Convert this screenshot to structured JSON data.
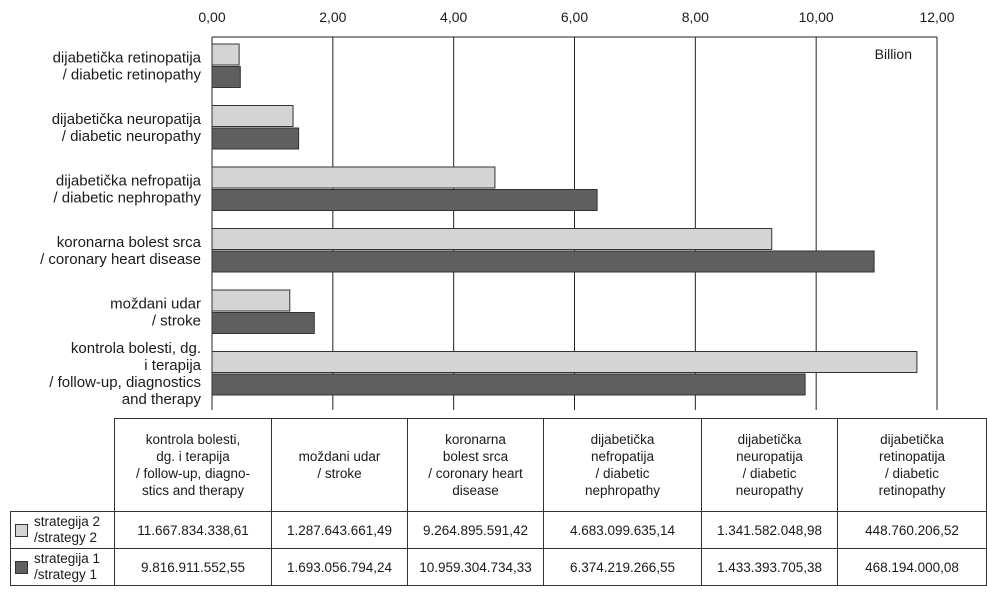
{
  "chart_data": {
    "type": "bar",
    "orientation": "horizontal",
    "unit_label": "Billion",
    "xlim": [
      0,
      12
    ],
    "x_ticks": [
      "0,00",
      "2,00",
      "4,00",
      "6,00",
      "8,00",
      "10,00",
      "12,00"
    ],
    "grid": "vertical",
    "categories": [
      "dijabetička retinopatija\n/ diabetic retinopathy",
      "dijabetička neuropatija\n/ diabetic neuropathy",
      "dijabetička nefropatija\n/ diabetic nephropathy",
      "koronarna bolest srca\n/ coronary heart disease",
      "moždani udar\n/ stroke",
      "kontrola bolesti, dg.\ni terapija\n/ follow-up, diagnostics\nand therapy"
    ],
    "series": [
      {
        "name": "strategija 2\n/strategy 2",
        "color": "#d4d4d4",
        "values": [
          0.4488,
          1.3416,
          4.6831,
          9.2649,
          1.2876,
          11.6678
        ]
      },
      {
        "name": "strategija 1\n/strategy 1",
        "color": "#5f5f5f",
        "values": [
          0.4682,
          1.4334,
          6.3742,
          10.9593,
          1.6931,
          9.8169
        ]
      }
    ]
  },
  "table": {
    "columns": [
      "kontrola bolesti,\ndg. i terapija\n/ follow-up, diagno-\nstics and therapy",
      "moždani udar\n/ stroke",
      "koronarna\nbolest srca\n/ coronary heart\ndisease",
      "dijabetička\nnefropatija\n/ diabetic\nnephropathy",
      "dijabetička\nneuropatija\n/ diabetic\nneuropathy",
      "dijabetička\nretinopatija\n/ diabetic\nretinopathy"
    ],
    "rows": [
      {
        "label": "strategija 2\n/strategy 2",
        "values": [
          "11.667.834.338,61",
          "1.287.643.661,49",
          "9.264.895.591,42",
          "4.683.099.635,14",
          "1.341.582.048,98",
          "448.760.206,52"
        ]
      },
      {
        "label": "strategija 1\n/strategy 1",
        "values": [
          "9.816.911.552,55",
          "1.693.056.794,24",
          "10.959.304.734,33",
          "6.374.219.266,55",
          "1.433.393.705,38",
          "468.194.000,08"
        ]
      }
    ]
  }
}
